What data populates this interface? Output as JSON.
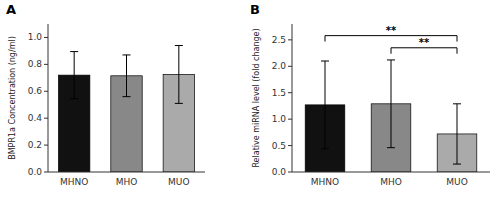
{
  "chart_data": [
    {
      "type": "bar",
      "title": "A",
      "categories": [
        "MHNO",
        "MHO",
        "MUO"
      ],
      "values": [
        0.72,
        0.715,
        0.725
      ],
      "errors": [
        0.175,
        0.155,
        0.215
      ],
      "colors": [
        "#111111",
        "#888888",
        "#aaaaaa"
      ],
      "ylabel": "BMPR1a Concentration (ng/ml)",
      "ylim": [
        0,
        1.1
      ],
      "yticks": [
        {
          "value": 0.0,
          "label": "0.0"
        },
        0.2,
        0.4,
        0.6,
        0.8,
        {
          "value": 1.0,
          "label": "1.0"
        }
      ],
      "grid": false
    },
    {
      "type": "bar",
      "title": "B",
      "categories": [
        "MHNO",
        "MHO",
        "MUO"
      ],
      "values": [
        1.27,
        1.29,
        0.72
      ],
      "errors": [
        0.83,
        0.83,
        0.57
      ],
      "colors": [
        "#111111",
        "#888888",
        "#aaaaaa"
      ],
      "ylabel": "Relative miRNA level (fold change)",
      "ylim": [
        0,
        2.8
      ],
      "yticks": [
        {
          "value": 0.0,
          "label": "0.0"
        },
        0.5,
        {
          "value": 1.0,
          "label": "1.0"
        },
        1.5,
        {
          "value": 2.0,
          "label": "2.0"
        },
        2.5
      ],
      "grid": false,
      "annotations": [
        {
          "text": "**",
          "from": "MHNO",
          "to": "MUO",
          "y": 2.58
        },
        {
          "text": "**",
          "from": "MHO",
          "to": "MUO",
          "y": 2.35
        }
      ]
    }
  ]
}
